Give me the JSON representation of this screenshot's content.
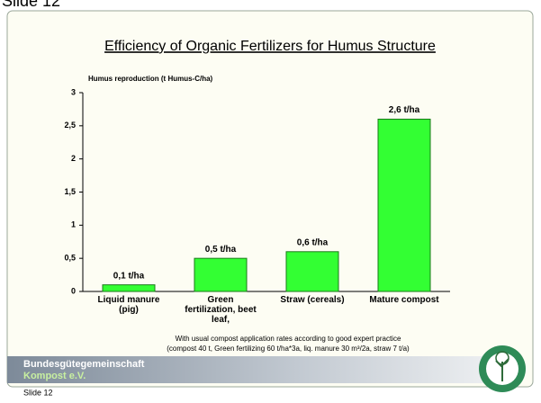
{
  "slide_label_top": "Slide 12",
  "chart_data": {
    "type": "bar",
    "title": "Efficiency of Organic Fertilizers for Humus Structure",
    "ylabel": "Humus reproduction (t Humus-C/ha)",
    "categories": [
      "Liquid manure (pig)",
      "Green fertilization, beet leaf,",
      "Straw (cereals)",
      "Mature compost"
    ],
    "values": [
      0.1,
      0.5,
      0.6,
      2.6
    ],
    "value_labels": [
      "0,1 t/ha",
      "0,5 t/ha",
      "0,6 t/ha",
      "2,6 t/ha"
    ],
    "color": "#33ff33",
    "ylim": [
      0,
      3
    ],
    "yticks": [
      0,
      {
        "value": 0.5,
        "label": "0,5"
      },
      1,
      {
        "value": 1.5,
        "label": "1,5"
      },
      2,
      {
        "value": 2.5,
        "label": "2,5"
      },
      3
    ],
    "grid": false
  },
  "footnote": [
    "With usual compost application rates according to good expert practice",
    "(compost 40 t, Green fertilizing 60 t/ha*3a, liq. manure 30 m³/2a, straw 7 t/a)"
  ],
  "footer": {
    "org_line1": "Bundesgütegemeinschaft",
    "org_line2": "Kompost e.V."
  },
  "slide_label_bottom": "Slide 12"
}
